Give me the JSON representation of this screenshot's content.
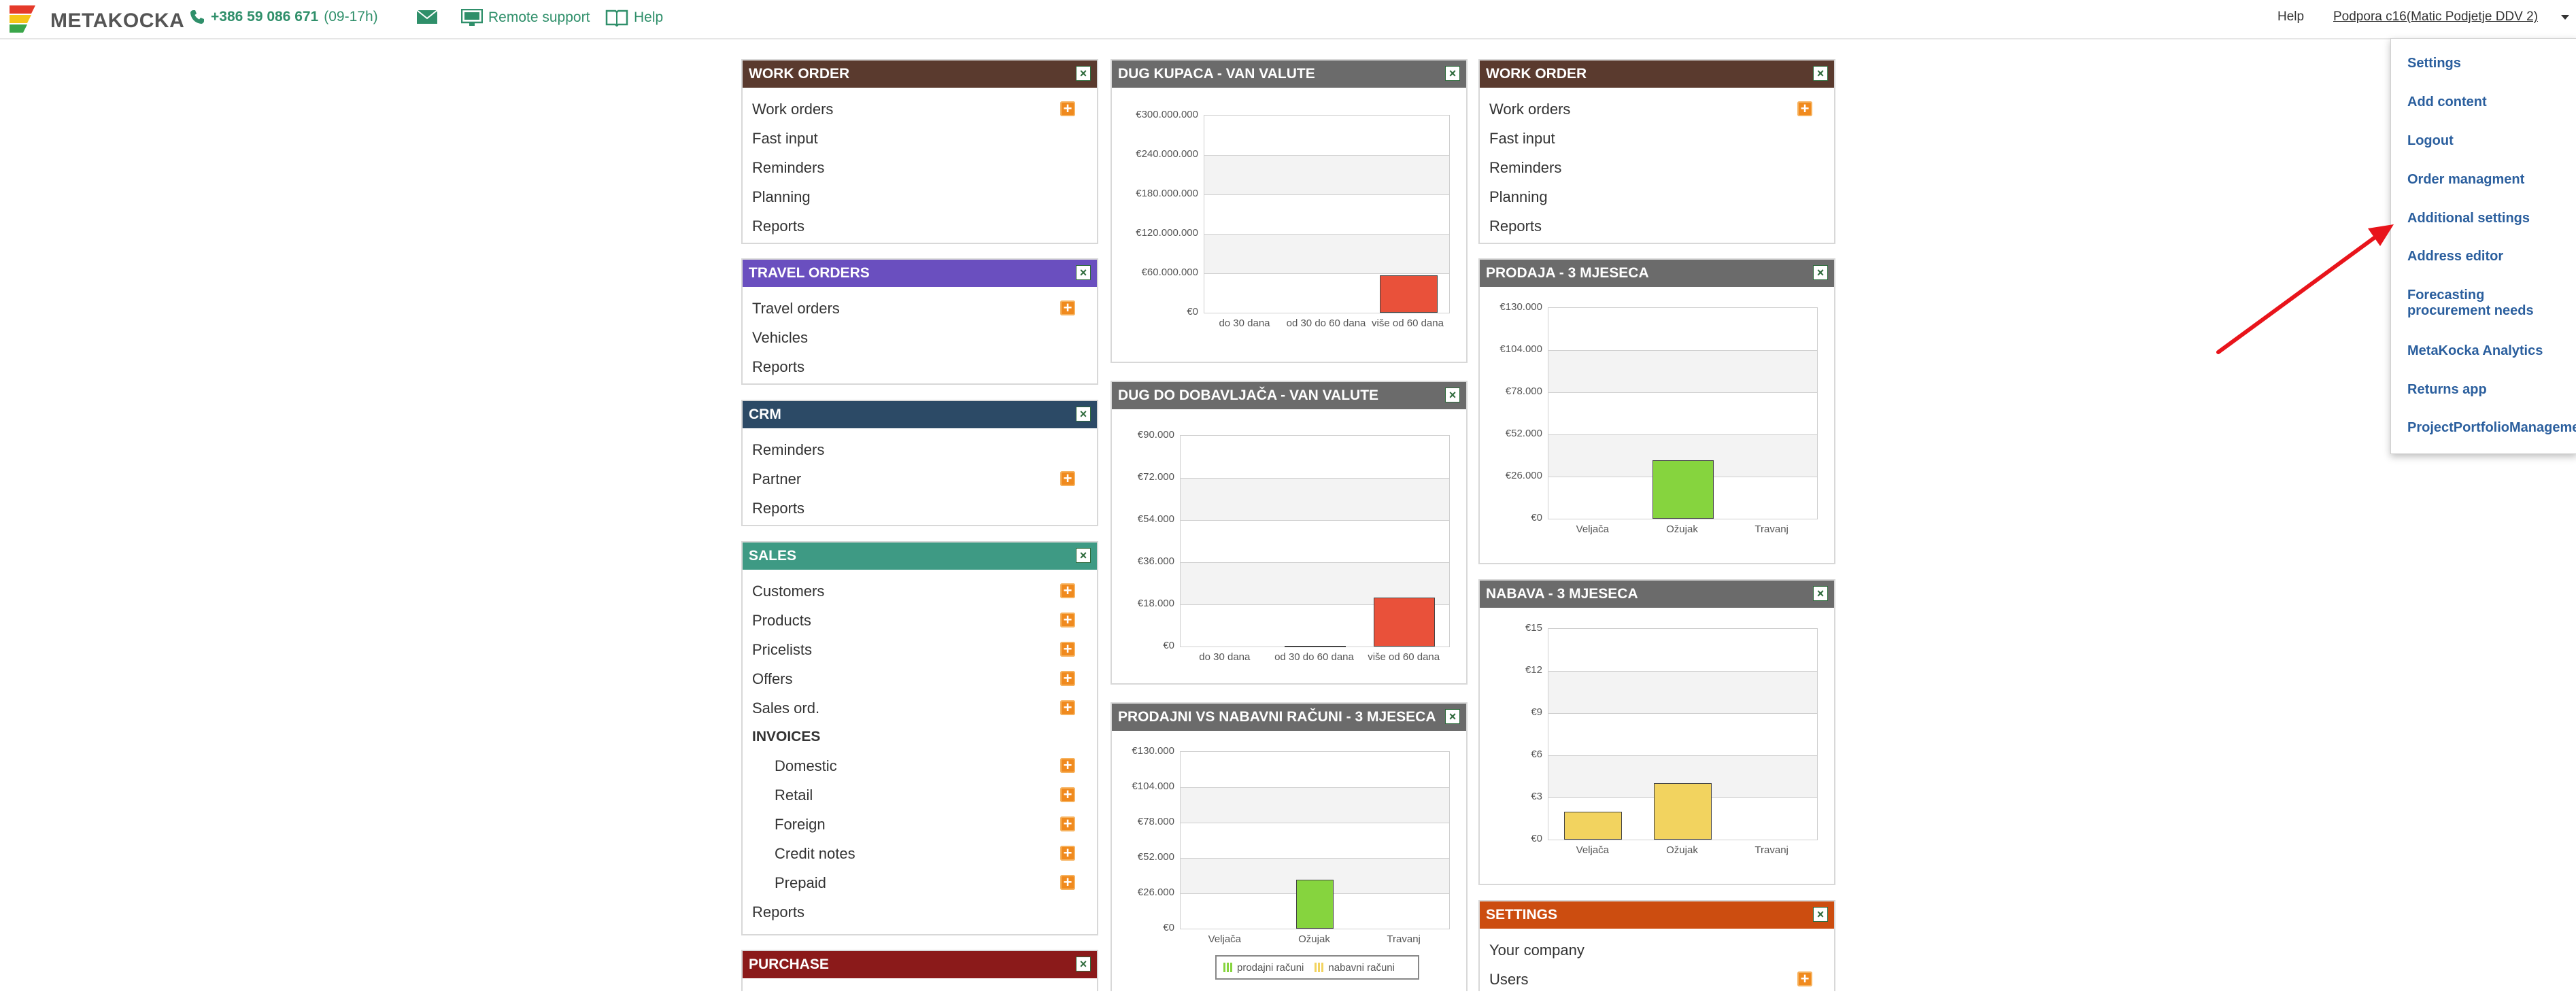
{
  "topbar": {
    "logo_text": "METAKOCKA",
    "phone": "+386 59 086 671",
    "phone_hours": "(09-17h)",
    "remote_support": "Remote support",
    "help": "Help",
    "help_right": "Help",
    "user": "Podpora c16(Matic Podjetje DDV 2)"
  },
  "dropdown": {
    "items": [
      "Settings",
      "Add content",
      "Logout",
      "Order managment",
      "Additional settings",
      "Address editor",
      "Forecasting procurement needs",
      "MetaKocka Analytics",
      "Returns app",
      "ProjectPortfolioManagement"
    ]
  },
  "widgets": {
    "work_order_left": {
      "title": "WORK ORDER",
      "items": [
        "Work orders",
        "Fast input",
        "Reminders",
        "Planning",
        "Reports"
      ]
    },
    "travel_orders": {
      "title": "TRAVEL ORDERS",
      "items": [
        "Travel orders",
        "Vehicles",
        "Reports"
      ]
    },
    "crm": {
      "title": "CRM",
      "items": [
        "Reminders",
        "Partner",
        "Reports"
      ]
    },
    "sales": {
      "title": "SALES",
      "items": [
        "Customers",
        "Products",
        "Pricelists",
        "Offers",
        "Sales ord."
      ],
      "invoices_heading": "INVOICES",
      "invoice_items": [
        "Domestic",
        "Retail",
        "Foreign",
        "Credit notes",
        "Prepaid"
      ],
      "reports": "Reports"
    },
    "purchase": {
      "title": "PURCHASE"
    },
    "dug_kupaca": {
      "title": "DUG KUPACA - VAN VALUTE"
    },
    "dug_dobavljaca": {
      "title": "DUG DO DOBAVLJAČA - VAN VALUTE"
    },
    "prodajni_vs_nabavni": {
      "title": "PRODAJNI VS NABAVNI RAČUNI - 3 MJESECA"
    },
    "work_order_right": {
      "title": "WORK ORDER",
      "items": [
        "Work orders",
        "Fast input",
        "Reminders",
        "Planning",
        "Reports"
      ]
    },
    "prodaja": {
      "title": "PRODAJA - 3 MJESECA"
    },
    "nabava": {
      "title": "NABAVA - 3 MJESECA"
    },
    "settings": {
      "title": "SETTINGS",
      "items": [
        "Your company",
        "Users"
      ]
    }
  },
  "colors": {
    "work_order_header": "#5a3a2e",
    "travel_orders_header": "#6a4fbf",
    "crm_header": "#2c4a66",
    "sales_header": "#3e9a84",
    "purchase_header": "#8b1a1a",
    "chart_header": "#6b6b6b",
    "settings_header": "#cc4d10",
    "red_bar": "#e9513a",
    "green_bar": "#86d43e",
    "yellow_bar": "#f2d35f",
    "link_blue": "#2b5f9e"
  },
  "chart_data": [
    {
      "type": "bar",
      "title": "DUG KUPACA - VAN VALUTE",
      "categories": [
        "do 30 dana",
        "od 30 do 60 dana",
        "više od 60 dana"
      ],
      "values": [
        0,
        0,
        57000000
      ],
      "ylim": [
        0,
        300000000
      ],
      "yticks": [
        "€0",
        "€60.000.000",
        "€120.000.000",
        "€180.000.000",
        "€240.000.000",
        "€300.000.000"
      ],
      "color": "#e9513a"
    },
    {
      "type": "bar",
      "title": "DUG DO DOBAVLJAČA - VAN VALUTE",
      "categories": [
        "do 30 dana",
        "od 30 do 60 dana",
        "više od 60 dana"
      ],
      "values": [
        0,
        200,
        21000
      ],
      "ylim": [
        0,
        90000
      ],
      "yticks": [
        "€0",
        "€18.000",
        "€36.000",
        "€54.000",
        "€72.000",
        "€90.000"
      ],
      "color": "#e9513a"
    },
    {
      "type": "bar",
      "title": "PRODAJNI VS NABAVNI RAČUNI - 3 MJESECA",
      "categories": [
        "Veljača",
        "Ožujak",
        "Travanj"
      ],
      "series": [
        {
          "name": "prodajni računi",
          "values": [
            200,
            36000,
            200
          ],
          "color": "#86d43e"
        },
        {
          "name": "nabavni računi",
          "values": [
            0,
            0,
            0
          ],
          "color": "#f2d35f"
        }
      ],
      "ylim": [
        0,
        130000
      ],
      "yticks": [
        "€0",
        "€26.000",
        "€52.000",
        "€78.000",
        "€104.000",
        "€130.000"
      ],
      "legend": "bottom"
    },
    {
      "type": "bar",
      "title": "PRODAJA - 3 MJESECA",
      "categories": [
        "Veljača",
        "Ožujak",
        "Travanj"
      ],
      "values": [
        200,
        36000,
        200
      ],
      "ylim": [
        0,
        130000
      ],
      "yticks": [
        "€0",
        "€26.000",
        "€52.000",
        "€78.000",
        "€104.000",
        "€130.000"
      ],
      "color": "#86d43e"
    },
    {
      "type": "bar",
      "title": "NABAVA - 3 MJESECA",
      "categories": [
        "Veljača",
        "Ožujak",
        "Travanj"
      ],
      "values": [
        2,
        4,
        0
      ],
      "ylim": [
        0,
        15
      ],
      "yticks": [
        "€0",
        "€3",
        "€6",
        "€9",
        "€12",
        "€15"
      ],
      "color": "#f2d35f"
    }
  ]
}
